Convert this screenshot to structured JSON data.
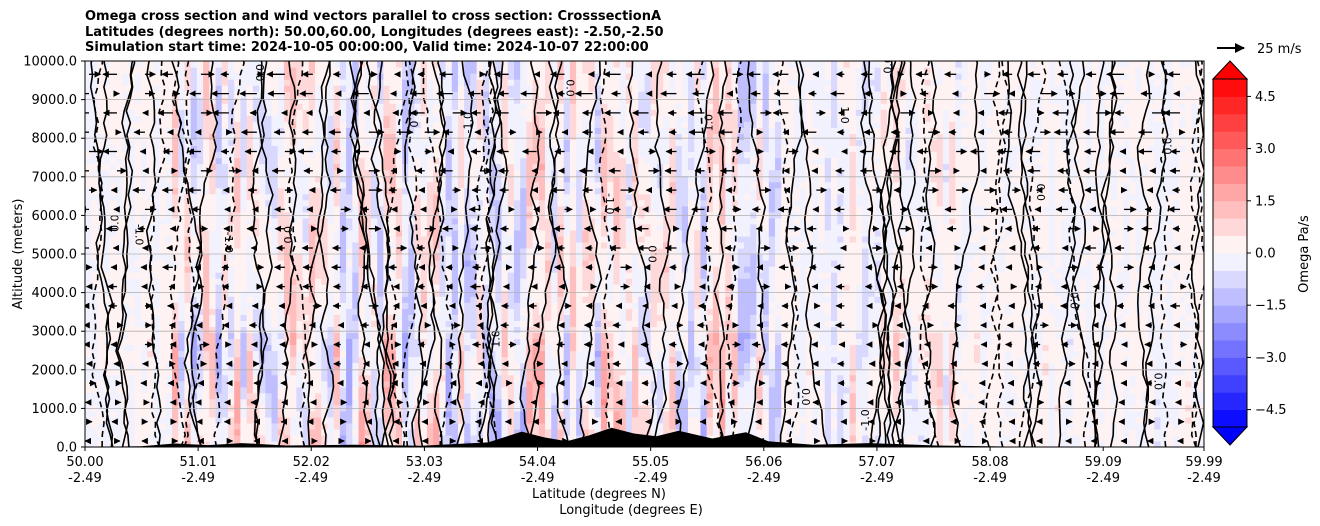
{
  "title_lines": [
    "Omega cross section and wind vectors parallel to cross section: CrosssectionA",
    "Latitudes (degrees north): 50.00,60.00, Longitudes (degrees east): -2.50,-2.50",
    "Simulation start time: 2024-10-05 00:00:00, Valid time: 2024-10-07 22:00:00"
  ],
  "chart_data": {
    "type": "heatmap",
    "title": "Omega cross section and wind vectors parallel to cross section: CrosssectionA",
    "ylabel": "Altitude (meters)",
    "xlabel_lines": [
      "Latitude (degrees N)",
      "Longitude (degrees E)"
    ],
    "ylim": [
      0,
      10000
    ],
    "xlim": [
      50.0,
      59.99
    ],
    "y_ticks": [
      {
        "value": 0,
        "label": "0.0"
      },
      {
        "value": 1000,
        "label": "1000.0"
      },
      {
        "value": 2000,
        "label": "2000.0"
      },
      {
        "value": 3000,
        "label": "3000.0"
      },
      {
        "value": 4000,
        "label": "4000.0"
      },
      {
        "value": 5000,
        "label": "5000.0"
      },
      {
        "value": 6000,
        "label": "6000.0"
      },
      {
        "value": 7000,
        "label": "7000.0"
      },
      {
        "value": 8000,
        "label": "8000.0"
      },
      {
        "value": 9000,
        "label": "9000.0"
      },
      {
        "value": 10000,
        "label": "10000.0"
      }
    ],
    "x_ticks": [
      {
        "lat": 50.0,
        "lat_label": "50.00",
        "lon_label": "-2.49"
      },
      {
        "lat": 51.01,
        "lat_label": "51.01",
        "lon_label": "-2.49"
      },
      {
        "lat": 52.02,
        "lat_label": "52.02",
        "lon_label": "-2.49"
      },
      {
        "lat": 53.03,
        "lat_label": "53.03",
        "lon_label": "-2.49"
      },
      {
        "lat": 54.04,
        "lat_label": "54.04",
        "lon_label": "-2.49"
      },
      {
        "lat": 55.05,
        "lat_label": "55.05",
        "lon_label": "-2.49"
      },
      {
        "lat": 56.06,
        "lat_label": "56.06",
        "lon_label": "-2.49"
      },
      {
        "lat": 57.07,
        "lat_label": "57.07",
        "lon_label": "-2.49"
      },
      {
        "lat": 58.08,
        "lat_label": "58.08",
        "lon_label": "-2.49"
      },
      {
        "lat": 59.09,
        "lat_label": "59.09",
        "lon_label": "-2.49"
      },
      {
        "lat": 59.99,
        "lat_label": "59.99",
        "lon_label": "-2.49"
      }
    ],
    "grid": true,
    "colorbar": {
      "label": "Omega Pa/s",
      "min": -5.0,
      "max": 5.0,
      "extend": "both",
      "levels": [
        -5.0,
        -4.5,
        -4.0,
        -3.5,
        -3.0,
        -2.5,
        -2.0,
        -1.5,
        -1.0,
        -0.5,
        0.0,
        0.5,
        1.0,
        1.5,
        2.0,
        2.5,
        3.0,
        3.5,
        4.0,
        4.5,
        5.0
      ],
      "tick_values": [
        -4.5,
        -3.0,
        -1.5,
        0.0,
        1.5,
        3.0,
        4.5
      ],
      "tick_labels": [
        "−4.5",
        "−3.0",
        "−1.5",
        "0.0",
        "1.5",
        "3.0",
        "4.5"
      ],
      "neg_color": "#0000ff",
      "pos_color": "#ff0000",
      "mid_color": "#ffffff"
    },
    "quiver_key": {
      "label": "25 m/s"
    },
    "contour_levels": [
      -1.0,
      0.0,
      1.0
    ],
    "contour_labels": [
      {
        "text": "0.0",
        "lat": 51.6,
        "alt": 9700
      },
      {
        "text": "-1.0",
        "lat": 50.45,
        "alt": 5500
      },
      {
        "text": "0.0",
        "lat": 50.3,
        "alt": 5800
      },
      {
        "text": "-1.0",
        "lat": 51.25,
        "alt": 5300
      },
      {
        "text": "0.0",
        "lat": 51.85,
        "alt": 5500
      },
      {
        "text": "1.0",
        "lat": 52.9,
        "alt": 8500
      },
      {
        "text": "-1.0",
        "lat": 53.45,
        "alt": 8400
      },
      {
        "text": "0.0",
        "lat": 54.3,
        "alt": 9300
      },
      {
        "text": "1.0",
        "lat": 55.6,
        "alt": 8400
      },
      {
        "text": "1.0",
        "lat": 56.75,
        "alt": 8600
      },
      {
        "text": "0.0",
        "lat": 57.2,
        "alt": 9900
      },
      {
        "text": "0.0",
        "lat": 58.5,
        "alt": 6600
      },
      {
        "text": "0.0",
        "lat": 59.7,
        "alt": 7800
      },
      {
        "text": "0.0",
        "lat": 58.8,
        "alt": 3800
      },
      {
        "text": "1.0",
        "lat": 53.7,
        "alt": 2800
      },
      {
        "text": "0.0",
        "lat": 56.4,
        "alt": 1300
      },
      {
        "text": "-1.0",
        "lat": 57.0,
        "alt": 700
      },
      {
        "text": "0.0",
        "lat": 59.55,
        "alt": 1700
      },
      {
        "text": "0.0",
        "lat": 55.1,
        "alt": 5000
      },
      {
        "text": "-1.0",
        "lat": 54.65,
        "alt": 6300
      }
    ],
    "terrain": [
      {
        "lat": 50.0,
        "alt": 0
      },
      {
        "lat": 50.5,
        "alt": 20
      },
      {
        "lat": 50.8,
        "alt": 90
      },
      {
        "lat": 51.1,
        "alt": 50
      },
      {
        "lat": 51.4,
        "alt": 100
      },
      {
        "lat": 51.8,
        "alt": 40
      },
      {
        "lat": 52.4,
        "alt": 60
      },
      {
        "lat": 53.0,
        "alt": 30
      },
      {
        "lat": 53.6,
        "alt": 120
      },
      {
        "lat": 53.9,
        "alt": 400
      },
      {
        "lat": 54.1,
        "alt": 250
      },
      {
        "lat": 54.3,
        "alt": 150
      },
      {
        "lat": 54.5,
        "alt": 300
      },
      {
        "lat": 54.7,
        "alt": 500
      },
      {
        "lat": 54.9,
        "alt": 350
      },
      {
        "lat": 55.1,
        "alt": 280
      },
      {
        "lat": 55.3,
        "alt": 420
      },
      {
        "lat": 55.6,
        "alt": 220
      },
      {
        "lat": 55.9,
        "alt": 380
      },
      {
        "lat": 56.1,
        "alt": 150
      },
      {
        "lat": 56.5,
        "alt": 60
      },
      {
        "lat": 57.0,
        "alt": 100
      },
      {
        "lat": 57.6,
        "alt": 40
      },
      {
        "lat": 58.3,
        "alt": 10
      },
      {
        "lat": 59.0,
        "alt": 0
      },
      {
        "lat": 59.99,
        "alt": 0
      }
    ]
  }
}
